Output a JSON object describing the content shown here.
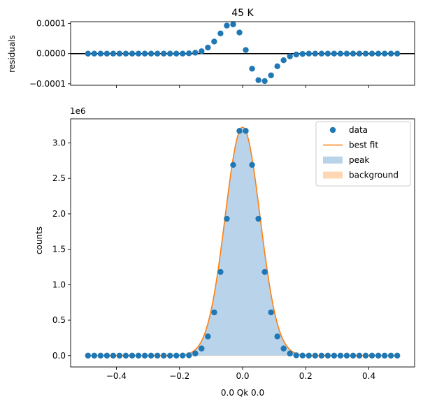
{
  "chart_data": [
    {
      "type": "scatter",
      "title": "45 K",
      "xlabel": "",
      "ylabel": "residuals",
      "xlim": [
        -0.545,
        0.545
      ],
      "ylim": [
        -0.000105,
        0.000106
      ],
      "xticks": [
        -0.4,
        -0.2,
        0.0,
        0.2,
        0.4
      ],
      "yticks": [
        -0.0001,
        0.0,
        0.0001
      ],
      "ytick_labels": [
        "−0.0001",
        "0.0000",
        "0.0001"
      ],
      "zero_line": true,
      "grid": false,
      "series": [
        {
          "name": "",
          "color": "#1f77b4",
          "x": [
            -0.49,
            -0.47,
            -0.45,
            -0.43,
            -0.41,
            -0.39,
            -0.37,
            -0.35,
            -0.33,
            -0.31,
            -0.29,
            -0.27,
            -0.25,
            -0.23,
            -0.21,
            -0.19,
            -0.17,
            -0.15,
            -0.13,
            -0.11,
            -0.09,
            -0.07,
            -0.05,
            -0.03,
            -0.01,
            0.01,
            0.03,
            0.05,
            0.07,
            0.09,
            0.11,
            0.13,
            0.15,
            0.17,
            0.19,
            0.21,
            0.23,
            0.25,
            0.27,
            0.29,
            0.31,
            0.33,
            0.35,
            0.37,
            0.39,
            0.41,
            0.43,
            0.45,
            0.47,
            0.49
          ],
          "y": [
            0,
            0,
            0,
            0,
            0,
            0,
            0,
            0,
            0,
            0,
            0,
            0,
            0,
            0,
            0,
            0,
            1e-06,
            3e-06,
            8e-06,
            2e-05,
            4e-05,
            6.7e-05,
            9.3e-05,
            9.7e-05,
            7e-05,
            1.2e-05,
            -5e-05,
            -8.8e-05,
            -9.1e-05,
            -7.2e-05,
            -4.2e-05,
            -2.2e-05,
            -9e-06,
            -3e-06,
            -1e-06,
            0,
            0,
            0,
            0,
            0,
            0,
            0,
            0,
            0,
            0,
            0,
            0,
            0,
            0,
            0
          ]
        }
      ]
    },
    {
      "type": "scatter",
      "title": "",
      "xlabel": "0.0 Qk 0.0",
      "ylabel": "counts",
      "offset_text": "1e6",
      "xlim": [
        -0.545,
        0.545
      ],
      "ylim": [
        -0.16,
        3.34
      ],
      "xticks": [
        -0.4,
        -0.2,
        0.0,
        0.2,
        0.4
      ],
      "xtick_labels": [
        "−0.4",
        "−0.2",
        "0.0",
        "0.2",
        "0.4"
      ],
      "yticks": [
        0.0,
        0.5,
        1.0,
        1.5,
        2.0,
        2.5,
        3.0
      ],
      "ytick_labels": [
        "0.0",
        "0.5",
        "1.0",
        "1.5",
        "2.0",
        "2.5",
        "3.0"
      ],
      "grid": false,
      "legend": {
        "position": "top-right",
        "entries": [
          {
            "label": "data",
            "kind": "marker",
            "color": "#1f77b4"
          },
          {
            "label": "best fit",
            "kind": "line",
            "color": "#ff7f0e"
          },
          {
            "label": "peak",
            "kind": "patch",
            "color": "#b8d3ea"
          },
          {
            "label": "background",
            "kind": "patch",
            "color": "#ffd8b3"
          }
        ]
      },
      "x": [
        -0.49,
        -0.47,
        -0.45,
        -0.43,
        -0.41,
        -0.39,
        -0.37,
        -0.35,
        -0.33,
        -0.31,
        -0.29,
        -0.27,
        -0.25,
        -0.23,
        -0.21,
        -0.19,
        -0.17,
        -0.15,
        -0.13,
        -0.11,
        -0.09,
        -0.07,
        -0.05,
        -0.03,
        -0.01,
        0.01,
        0.03,
        0.05,
        0.07,
        0.09,
        0.11,
        0.13,
        0.15,
        0.17,
        0.19,
        0.21,
        0.23,
        0.25,
        0.27,
        0.29,
        0.31,
        0.33,
        0.35,
        0.37,
        0.39,
        0.41,
        0.43,
        0.45,
        0.47,
        0.49
      ],
      "series": [
        {
          "name": "data",
          "kind": "scatter",
          "color": "#1f77b4",
          "y": [
            0,
            0,
            0,
            0,
            0,
            0,
            0,
            0,
            0,
            0,
            0,
            0,
            0,
            0,
            0,
            0.001,
            0.004,
            0.03,
            0.1,
            0.27,
            0.61,
            1.18,
            1.93,
            2.69,
            3.17,
            3.17,
            2.69,
            1.93,
            1.18,
            0.61,
            0.27,
            0.1,
            0.03,
            0.004,
            0.001,
            0,
            0,
            0,
            0,
            0,
            0,
            0,
            0,
            0,
            0,
            0,
            0,
            0,
            0,
            0
          ]
        },
        {
          "name": "best fit",
          "kind": "line",
          "color": "#ff7f0e",
          "y": [
            0,
            0,
            0,
            0,
            0,
            0,
            0,
            0,
            0,
            0,
            0,
            0,
            0,
            0,
            0,
            0.001,
            0.004,
            0.03,
            0.1,
            0.27,
            0.61,
            1.18,
            1.93,
            2.69,
            3.17,
            3.17,
            2.69,
            1.93,
            1.18,
            0.61,
            0.27,
            0.1,
            0.03,
            0.004,
            0.001,
            0,
            0,
            0,
            0,
            0,
            0,
            0,
            0,
            0,
            0,
            0,
            0,
            0,
            0,
            0
          ]
        },
        {
          "name": "peak",
          "kind": "area",
          "color": "#b8d3ea",
          "y": [
            0,
            0,
            0,
            0,
            0,
            0,
            0,
            0,
            0,
            0,
            0,
            0,
            0,
            0,
            0,
            0.001,
            0.004,
            0.03,
            0.1,
            0.27,
            0.61,
            1.18,
            1.93,
            2.69,
            3.17,
            3.17,
            2.69,
            1.93,
            1.18,
            0.61,
            0.27,
            0.1,
            0.03,
            0.004,
            0.001,
            0,
            0,
            0,
            0,
            0,
            0,
            0,
            0,
            0,
            0,
            0,
            0,
            0,
            0,
            0
          ]
        },
        {
          "name": "background",
          "kind": "area",
          "color": "#ffd8b3",
          "y": [
            0,
            0,
            0,
            0,
            0,
            0,
            0,
            0,
            0,
            0,
            0,
            0,
            0,
            0,
            0,
            0,
            0,
            0,
            0,
            0,
            0,
            0,
            0,
            0,
            0,
            0,
            0,
            0,
            0,
            0,
            0,
            0,
            0,
            0,
            0,
            0,
            0,
            0,
            0,
            0,
            0,
            0,
            0,
            0,
            0,
            0,
            0,
            0,
            0,
            0
          ]
        }
      ]
    }
  ]
}
